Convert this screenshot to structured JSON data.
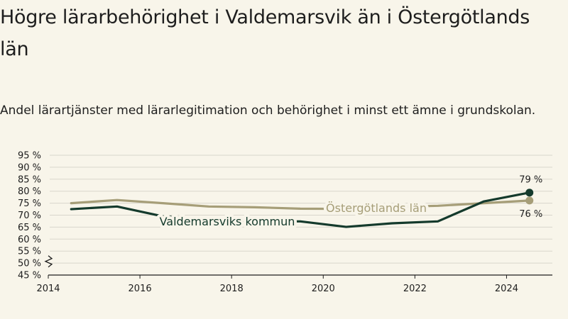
{
  "title": "Högre lärarbehörighet i Valdemarsvik än i Östergötlands län",
  "subtitle": "Andel lärartjänster med lärarlegitimation och behörighet i minst ett ämne i grundskolan.",
  "colors": {
    "background": "#f8f5ea",
    "kommun": "#143a2c",
    "lan": "#a69e78",
    "grid": "#d9d6cc"
  },
  "chart_data": {
    "type": "line",
    "x_ticks": [
      "2014",
      "2016",
      "2018",
      "2020",
      "2022",
      "2024"
    ],
    "y_ticks": [
      "45 %",
      "50 %",
      "55 %",
      "60 %",
      "65 %",
      "70 %",
      "75 %",
      "80 %",
      "85 %",
      "90 %",
      "95 %"
    ],
    "xlim": [
      2014,
      2025
    ],
    "ylim": [
      45,
      95
    ],
    "y_axis_break": true,
    "grid": true,
    "series": [
      {
        "name": "Valdemarsviks kommun",
        "color": "#143a2c",
        "x": [
          2014.5,
          2015.5,
          2016.5,
          2017.5,
          2018.5,
          2019.5,
          2020.5,
          2021.5,
          2022.5,
          2023.5,
          2024.5
        ],
        "values": [
          72.5,
          73.6,
          69.5,
          68.2,
          67.4,
          67.4,
          65.1,
          66.6,
          67.4,
          75.7,
          79.4
        ],
        "end_label": "79 %"
      },
      {
        "name": "Östergötlands län",
        "color": "#a69e78",
        "x": [
          2014.5,
          2015.5,
          2016.5,
          2017.5,
          2018.5,
          2019.5,
          2020.5,
          2021.5,
          2022.5,
          2023.5,
          2024.5
        ],
        "values": [
          75.0,
          76.3,
          75.0,
          73.6,
          73.3,
          72.7,
          72.6,
          73.4,
          73.9,
          75.0,
          76.1
        ],
        "end_label": "76 %"
      }
    ]
  }
}
